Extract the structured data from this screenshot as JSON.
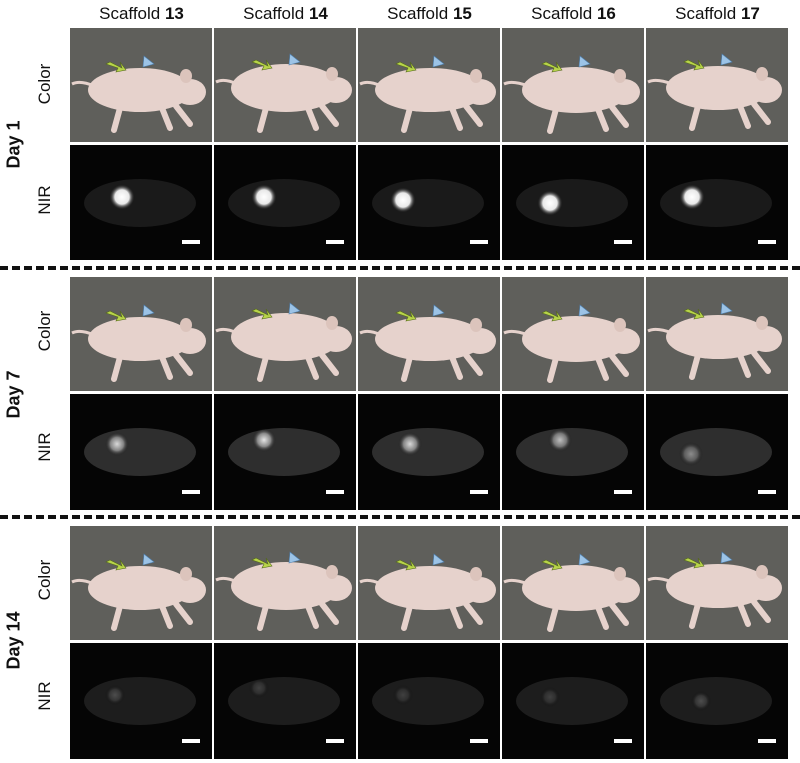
{
  "columns": [
    {
      "prefix": "Scaffold ",
      "number": "13"
    },
    {
      "prefix": "Scaffold ",
      "number": "14"
    },
    {
      "prefix": "Scaffold ",
      "number": "15"
    },
    {
      "prefix": "Scaffold ",
      "number": "16"
    },
    {
      "prefix": "Scaffold ",
      "number": "17"
    }
  ],
  "days": [
    {
      "label": "Day 1",
      "rows": [
        {
          "label": "Color",
          "kind": "color"
        },
        {
          "label": "NIR",
          "kind": "nir",
          "signal_level": [
            1.0,
            1.0,
            1.0,
            1.0,
            1.0
          ]
        }
      ]
    },
    {
      "label": "Day 7",
      "rows": [
        {
          "label": "Color",
          "kind": "color"
        },
        {
          "label": "NIR",
          "kind": "nir",
          "signal_level": [
            0.85,
            0.9,
            0.85,
            0.75,
            0.55
          ]
        }
      ]
    },
    {
      "label": "Day 14",
      "rows": [
        {
          "label": "Color",
          "kind": "color"
        },
        {
          "label": "NIR",
          "kind": "nir",
          "signal_level": [
            0.3,
            0.25,
            0.25,
            0.25,
            0.3
          ]
        }
      ]
    }
  ],
  "colors": {
    "background_color_photo": "#5f5f5b",
    "mouse_body": "#e6d2cc",
    "green_arrow": "#b8d44a",
    "blue_arrowhead": "#9cc3e6",
    "nir_background": "#050505"
  }
}
